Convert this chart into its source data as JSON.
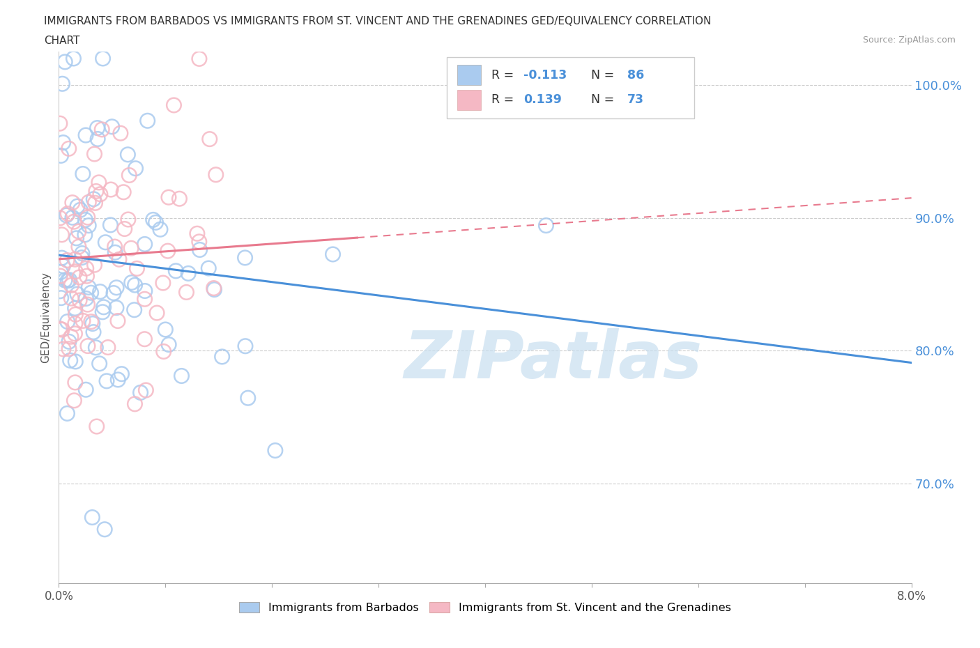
{
  "title_line1": "IMMIGRANTS FROM BARBADOS VS IMMIGRANTS FROM ST. VINCENT AND THE GRENADINES GED/EQUIVALENCY CORRELATION",
  "title_line2": "CHART",
  "source": "Source: ZipAtlas.com",
  "ylabel": "GED/Equivalency",
  "xlim": [
    0.0,
    0.08
  ],
  "ylim": [
    0.625,
    1.025
  ],
  "yticks": [
    0.7,
    0.8,
    0.9,
    1.0
  ],
  "ytick_labels": [
    "70.0%",
    "80.0%",
    "90.0%",
    "100.0%"
  ],
  "xtick_labels_left": "0.0%",
  "xtick_labels_right": "8.0%",
  "color_blue": "#aacbef",
  "color_pink": "#f5b8c4",
  "line_blue": "#4a90d9",
  "line_pink": "#e87a8e",
  "R_blue": -0.113,
  "N_blue": 86,
  "R_pink": 0.139,
  "N_pink": 73,
  "legend_label_blue": "Immigrants from Barbados",
  "legend_label_pink": "Immigrants from St. Vincent and the Grenadines",
  "watermark": "ZIPatlas",
  "watermark_color": "#c8dff0",
  "blue_line_y0": 0.872,
  "blue_line_y1": 0.791,
  "pink_line_y0": 0.869,
  "pink_line_y1": 0.915
}
